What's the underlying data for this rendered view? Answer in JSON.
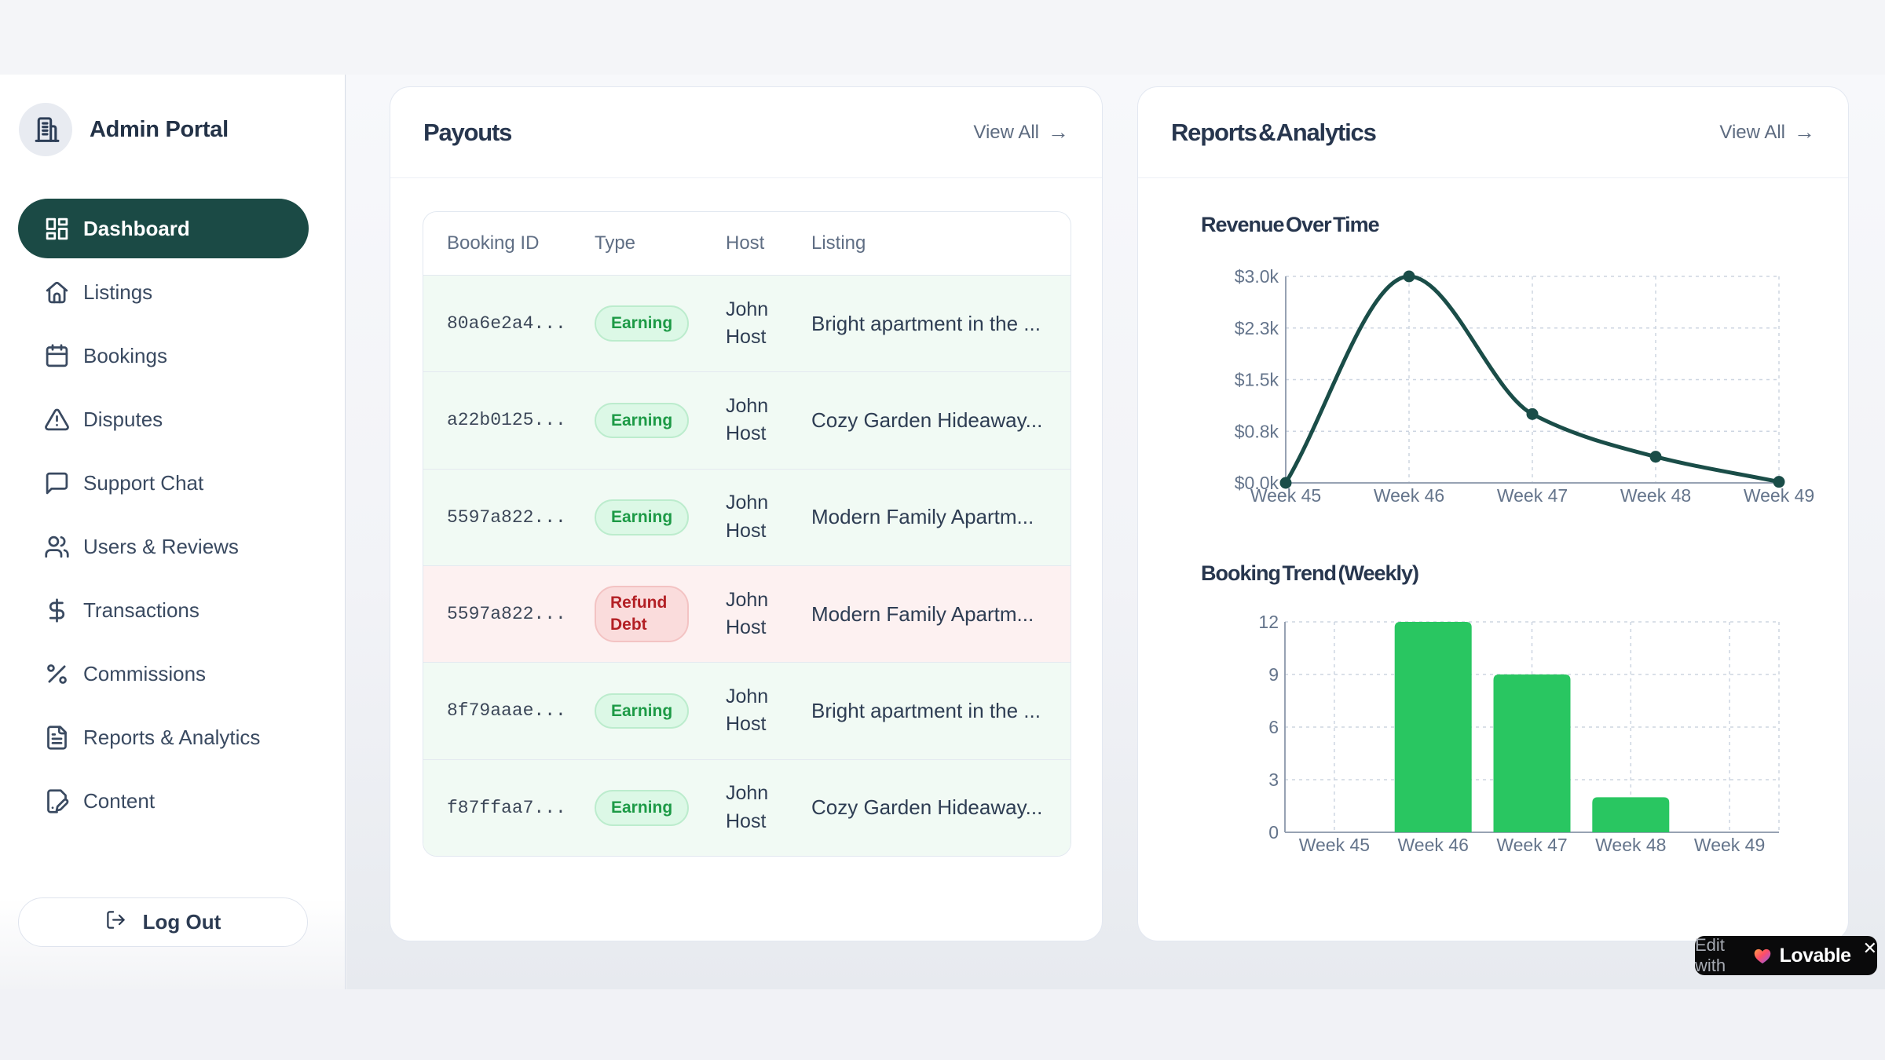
{
  "sidebar": {
    "brand": "Admin Portal",
    "logo_icon": "building-icon",
    "items": [
      {
        "label": "Dashboard",
        "icon": "layout-dashboard-icon",
        "active": true
      },
      {
        "label": "Listings",
        "icon": "home-icon",
        "active": false
      },
      {
        "label": "Bookings",
        "icon": "calendar-icon",
        "active": false
      },
      {
        "label": "Disputes",
        "icon": "alert-triangle-icon",
        "active": false
      },
      {
        "label": "Support Chat",
        "icon": "message-square-icon",
        "active": false
      },
      {
        "label": "Users & Reviews",
        "icon": "users-icon",
        "active": false
      },
      {
        "label": "Transactions",
        "icon": "dollar-icon",
        "active": false
      },
      {
        "label": "Commissions",
        "icon": "percent-icon",
        "active": false
      },
      {
        "label": "Reports & Analytics",
        "icon": "file-text-icon",
        "active": false
      },
      {
        "label": "Content",
        "icon": "file-pen-icon",
        "active": false
      }
    ],
    "logout": {
      "label": "Log Out",
      "icon": "log-out-icon"
    }
  },
  "payouts": {
    "title": "Payouts",
    "view_all": "View All",
    "view_all_arrow": "→",
    "table": {
      "columns": [
        "Booking ID",
        "Type",
        "Host",
        "Listing"
      ],
      "rows": [
        {
          "booking_id": "80a6e2a4...",
          "type": "Earning",
          "variant": "earning",
          "host": "John Host",
          "listing": "Bright apartment in the ..."
        },
        {
          "booking_id": "a22b0125...",
          "type": "Earning",
          "variant": "earning",
          "host": "John Host",
          "listing": "Cozy Garden Hideaway..."
        },
        {
          "booking_id": "5597a822...",
          "type": "Earning",
          "variant": "earning",
          "host": "John Host",
          "listing": "Modern Family Apartm..."
        },
        {
          "booking_id": "5597a822...",
          "type": "Refund Debt",
          "variant": "refund",
          "host": "John Host",
          "listing": "Modern Family Apartm..."
        },
        {
          "booking_id": "8f79aaae...",
          "type": "Earning",
          "variant": "earning",
          "host": "John Host",
          "listing": "Bright apartment in the ..."
        },
        {
          "booking_id": "f87ffaa7...",
          "type": "Earning",
          "variant": "earning",
          "host": "John Host",
          "listing": "Cozy Garden Hideaway..."
        }
      ]
    }
  },
  "reports": {
    "title": "Reports & Analytics",
    "view_all": "View All",
    "view_all_arrow": "→"
  },
  "chart_data": [
    {
      "type": "line",
      "title": "Revenue Over Time",
      "x": [
        "Week 45",
        "Week 46",
        "Week 47",
        "Week 48",
        "Week 49"
      ],
      "values": [
        0,
        3000,
        1000,
        380,
        15
      ],
      "ytick_labels": [
        "$0.0k",
        "$0.8k",
        "$1.5k",
        "$2.3k",
        "$3.0k"
      ],
      "ylim": [
        0,
        3000
      ],
      "grid": "dashed",
      "legend": "none",
      "line_color": "#1a4d48"
    },
    {
      "type": "bar",
      "title": "Booking Trend (Weekly)",
      "categories": [
        "Week 45",
        "Week 46",
        "Week 47",
        "Week 48",
        "Week 49"
      ],
      "values": [
        0,
        12,
        9,
        2,
        0
      ],
      "yticks": [
        0,
        3,
        6,
        9,
        12
      ],
      "ylim": [
        0,
        12
      ],
      "grid": "dashed",
      "legend": "none",
      "bar_color": "#29c661"
    }
  ],
  "lovable": {
    "prefix": "Edit with",
    "brand": "Lovable",
    "heart_icon": "heart-icon",
    "close": "✕"
  },
  "colors": {
    "active_nav": "#1b4a45",
    "earning_green": "#1d9a46",
    "refund_red": "#b32025",
    "bar_green": "#29c661",
    "line_teal": "#1a4d48",
    "title_navy": "#27364e"
  }
}
